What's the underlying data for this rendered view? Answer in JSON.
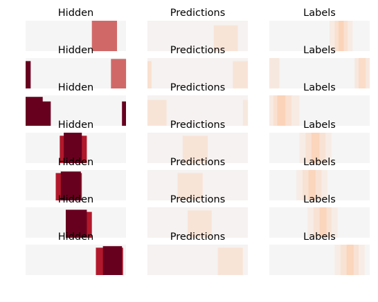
{
  "chart_data": {
    "type": "heatmap",
    "layout": {
      "rows": 7,
      "columns": 3
    },
    "column_titles": [
      "Hidden",
      "Predictions",
      "Labels"
    ],
    "x_range": [
      0,
      1
    ],
    "colorscale": {
      "low": "#f5f5f5",
      "mid": "#fbd3b9",
      "high": "#67001f"
    },
    "axes_visible": false,
    "rows": [
      {
        "hidden": [
          {
            "start": 0.665,
            "end": 0.905,
            "top": 0.0,
            "value": 1.0
          },
          {
            "start": 0.66,
            "end": 0.91,
            "top": 0.0,
            "value": 0.6
          }
        ],
        "predictions": [
          {
            "start": 0.0,
            "end": 1.0,
            "top": 0.0,
            "value": 0.03
          },
          {
            "start": 0.66,
            "end": 0.9,
            "top": 0.15,
            "value": 0.2
          }
        ],
        "labels": [
          {
            "start": 0.6,
            "end": 0.83,
            "top": 0.0,
            "value": 0.12
          },
          {
            "start": 0.65,
            "end": 0.78,
            "top": 0.0,
            "value": 0.25
          },
          {
            "start": 0.69,
            "end": 0.74,
            "top": 0.0,
            "value": 0.4
          }
        ]
      },
      {
        "hidden": [
          {
            "start": 0.0,
            "end": 0.05,
            "top": 0.1,
            "value": 1.0
          },
          {
            "start": 0.86,
            "end": 1.0,
            "top": 0.1,
            "value": 1.0
          },
          {
            "start": 0.85,
            "end": 1.0,
            "top": 0.03,
            "value": 0.6
          }
        ],
        "predictions": [
          {
            "start": 0.0,
            "end": 1.0,
            "top": 0.0,
            "value": 0.03
          },
          {
            "start": 0.0,
            "end": 0.04,
            "top": 0.1,
            "value": 0.25
          },
          {
            "start": 0.85,
            "end": 1.0,
            "top": 0.1,
            "value": 0.2
          }
        ],
        "labels": [
          {
            "start": 0.0,
            "end": 0.1,
            "top": 0.0,
            "value": 0.15
          },
          {
            "start": 0.85,
            "end": 1.0,
            "top": 0.0,
            "value": 0.15
          },
          {
            "start": 0.89,
            "end": 0.96,
            "top": 0.0,
            "value": 0.3
          }
        ]
      },
      {
        "hidden": [
          {
            "start": 0.0,
            "end": 0.25,
            "top": 0.2,
            "value": 1.0
          },
          {
            "start": 0.0,
            "end": 0.17,
            "top": 0.05,
            "value": 1.0
          },
          {
            "start": 0.96,
            "end": 1.0,
            "top": 0.2,
            "value": 1.0
          }
        ],
        "predictions": [
          {
            "start": 0.0,
            "end": 1.0,
            "top": 0.0,
            "value": 0.03
          },
          {
            "start": 0.0,
            "end": 0.19,
            "top": 0.15,
            "value": 0.2
          },
          {
            "start": 0.95,
            "end": 1.0,
            "top": 0.15,
            "value": 0.15
          }
        ],
        "labels": [
          {
            "start": 0.0,
            "end": 0.3,
            "top": 0.0,
            "value": 0.12
          },
          {
            "start": 0.04,
            "end": 0.22,
            "top": 0.0,
            "value": 0.25
          },
          {
            "start": 0.08,
            "end": 0.16,
            "top": 0.0,
            "value": 0.4
          }
        ]
      },
      {
        "hidden": [
          {
            "start": 0.34,
            "end": 0.61,
            "top": 0.1,
            "value": 0.75
          },
          {
            "start": 0.38,
            "end": 0.56,
            "top": 0.0,
            "value": 1.0
          }
        ],
        "predictions": [
          {
            "start": 0.0,
            "end": 1.0,
            "top": 0.0,
            "value": 0.03
          },
          {
            "start": 0.35,
            "end": 0.6,
            "top": 0.1,
            "value": 0.2
          }
        ],
        "labels": [
          {
            "start": 0.3,
            "end": 0.62,
            "top": 0.0,
            "value": 0.1
          },
          {
            "start": 0.36,
            "end": 0.56,
            "top": 0.0,
            "value": 0.22
          },
          {
            "start": 0.42,
            "end": 0.5,
            "top": 0.0,
            "value": 0.38
          }
        ]
      },
      {
        "hidden": [
          {
            "start": 0.3,
            "end": 0.56,
            "top": 0.1,
            "value": 0.75
          },
          {
            "start": 0.35,
            "end": 0.55,
            "top": 0.05,
            "value": 1.0
          }
        ],
        "predictions": [
          {
            "start": 0.0,
            "end": 1.0,
            "top": 0.0,
            "value": 0.03
          },
          {
            "start": 0.3,
            "end": 0.55,
            "top": 0.1,
            "value": 0.2
          }
        ],
        "labels": [
          {
            "start": 0.27,
            "end": 0.58,
            "top": 0.0,
            "value": 0.1
          },
          {
            "start": 0.33,
            "end": 0.52,
            "top": 0.0,
            "value": 0.22
          },
          {
            "start": 0.39,
            "end": 0.46,
            "top": 0.0,
            "value": 0.38
          }
        ]
      },
      {
        "hidden": [
          {
            "start": 0.4,
            "end": 0.66,
            "top": 0.15,
            "value": 0.75
          },
          {
            "start": 0.4,
            "end": 0.61,
            "top": 0.08,
            "value": 1.0
          }
        ],
        "predictions": [
          {
            "start": 0.0,
            "end": 1.0,
            "top": 0.0,
            "value": 0.03
          },
          {
            "start": 0.4,
            "end": 0.64,
            "top": 0.1,
            "value": 0.2
          }
        ],
        "labels": [
          {
            "start": 0.38,
            "end": 0.68,
            "top": 0.0,
            "value": 0.1
          },
          {
            "start": 0.44,
            "end": 0.62,
            "top": 0.0,
            "value": 0.22
          },
          {
            "start": 0.5,
            "end": 0.57,
            "top": 0.0,
            "value": 0.38
          }
        ]
      },
      {
        "hidden": [
          {
            "start": 0.7,
            "end": 0.97,
            "top": 0.1,
            "value": 0.75
          },
          {
            "start": 0.77,
            "end": 0.96,
            "top": 0.05,
            "value": 1.0
          }
        ],
        "predictions": [
          {
            "start": 0.0,
            "end": 1.0,
            "top": 0.0,
            "value": 0.03
          },
          {
            "start": 0.7,
            "end": 0.95,
            "top": 0.1,
            "value": 0.2
          }
        ],
        "labels": [
          {
            "start": 0.65,
            "end": 0.95,
            "top": 0.0,
            "value": 0.1
          },
          {
            "start": 0.71,
            "end": 0.89,
            "top": 0.0,
            "value": 0.22
          },
          {
            "start": 0.77,
            "end": 0.84,
            "top": 0.0,
            "value": 0.38
          }
        ]
      }
    ]
  }
}
